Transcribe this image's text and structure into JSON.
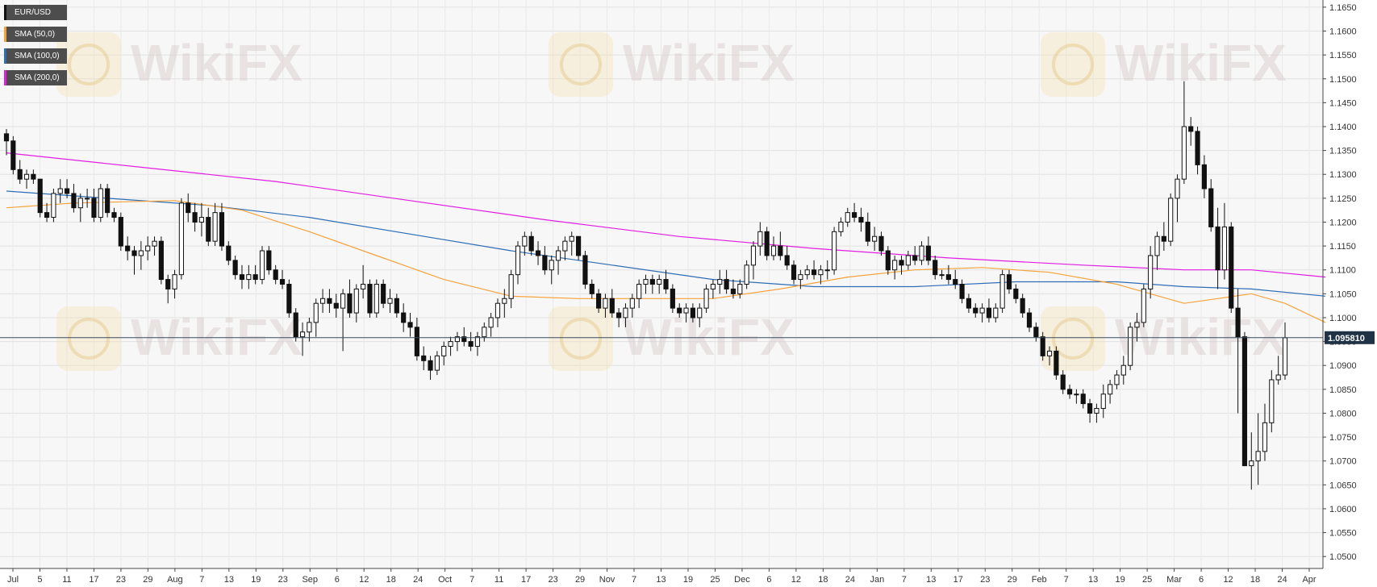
{
  "legend": [
    {
      "label": "EUR/USD",
      "color": "#111111"
    },
    {
      "label": "SMA (50,0)",
      "color": "#f5a23a"
    },
    {
      "label": "SMA (100,0)",
      "color": "#2e6db4"
    },
    {
      "label": "SMA (200,0)",
      "color": "#e11de1"
    }
  ],
  "watermark": "WikiFX",
  "last_price_label": "1.095810",
  "chart_data": {
    "type": "candlestick",
    "instrument": "EUR/USD",
    "timeframe": "daily",
    "ylim": [
      1.0475,
      1.1665
    ],
    "y_ticks": [
      "1.0500",
      "1.0550",
      "1.0600",
      "1.0650",
      "1.0700",
      "1.0750",
      "1.0800",
      "1.0850",
      "1.0900",
      "1.0950",
      "1.1000",
      "1.1050",
      "1.1100",
      "1.1150",
      "1.1200",
      "1.1250",
      "1.1300",
      "1.1350",
      "1.1400",
      "1.1450",
      "1.1500",
      "1.1550",
      "1.1600",
      "1.1650"
    ],
    "x_ticks": [
      "Jul",
      "5",
      "11",
      "17",
      "23",
      "29",
      "Aug",
      "7",
      "13",
      "19",
      "23",
      "Sep",
      "6",
      "12",
      "18",
      "24",
      "Oct",
      "7",
      "11",
      "17",
      "23",
      "29",
      "Nov",
      "7",
      "13",
      "19",
      "25",
      "Dec",
      "6",
      "12",
      "18",
      "24",
      "Jan",
      "7",
      "13",
      "17",
      "23",
      "29",
      "Feb",
      "7",
      "13",
      "19",
      "25",
      "Mar",
      "6",
      "12",
      "18",
      "24",
      "Apr"
    ],
    "grid": true,
    "last_price": 1.09581,
    "candles": [
      [
        1.1385,
        1.1395,
        1.134,
        1.137
      ],
      [
        1.137,
        1.138,
        1.13,
        1.131
      ],
      [
        1.131,
        1.133,
        1.128,
        1.129
      ],
      [
        1.129,
        1.131,
        1.127,
        1.13
      ],
      [
        1.13,
        1.131,
        1.128,
        1.129
      ],
      [
        1.129,
        1.129,
        1.121,
        1.122
      ],
      [
        1.122,
        1.124,
        1.12,
        1.121
      ],
      [
        1.121,
        1.127,
        1.12,
        1.126
      ],
      [
        1.126,
        1.129,
        1.124,
        1.127
      ],
      [
        1.127,
        1.129,
        1.125,
        1.126
      ],
      [
        1.126,
        1.128,
        1.122,
        1.123
      ],
      [
        1.123,
        1.126,
        1.12,
        1.125
      ],
      [
        1.125,
        1.127,
        1.123,
        1.125
      ],
      [
        1.125,
        1.127,
        1.12,
        1.121
      ],
      [
        1.121,
        1.128,
        1.12,
        1.127
      ],
      [
        1.127,
        1.128,
        1.121,
        1.122
      ],
      [
        1.122,
        1.123,
        1.12,
        1.121
      ],
      [
        1.121,
        1.122,
        1.114,
        1.115
      ],
      [
        1.115,
        1.117,
        1.112,
        1.114
      ],
      [
        1.114,
        1.115,
        1.109,
        1.113
      ],
      [
        1.113,
        1.116,
        1.11,
        1.114
      ],
      [
        1.114,
        1.117,
        1.112,
        1.115
      ],
      [
        1.115,
        1.117,
        1.113,
        1.116
      ],
      [
        1.116,
        1.117,
        1.107,
        1.108
      ],
      [
        1.108,
        1.109,
        1.103,
        1.106
      ],
      [
        1.106,
        1.11,
        1.104,
        1.109
      ],
      [
        1.109,
        1.125,
        1.108,
        1.124
      ],
      [
        1.124,
        1.126,
        1.12,
        1.122
      ],
      [
        1.122,
        1.124,
        1.118,
        1.12
      ],
      [
        1.12,
        1.124,
        1.117,
        1.121
      ],
      [
        1.121,
        1.123,
        1.115,
        1.116
      ],
      [
        1.116,
        1.124,
        1.115,
        1.122
      ],
      [
        1.122,
        1.124,
        1.114,
        1.115
      ],
      [
        1.115,
        1.116,
        1.111,
        1.112
      ],
      [
        1.112,
        1.113,
        1.108,
        1.109
      ],
      [
        1.109,
        1.111,
        1.106,
        1.108
      ],
      [
        1.108,
        1.111,
        1.106,
        1.109
      ],
      [
        1.109,
        1.111,
        1.107,
        1.108
      ],
      [
        1.108,
        1.115,
        1.107,
        1.114
      ],
      [
        1.114,
        1.115,
        1.109,
        1.11
      ],
      [
        1.11,
        1.111,
        1.107,
        1.108
      ],
      [
        1.108,
        1.11,
        1.106,
        1.107
      ],
      [
        1.107,
        1.108,
        1.1,
        1.101
      ],
      [
        1.101,
        1.102,
        1.095,
        1.096
      ],
      [
        1.096,
        1.099,
        1.092,
        1.097
      ],
      [
        1.097,
        1.1,
        1.095,
        1.099
      ],
      [
        1.099,
        1.104,
        1.096,
        1.103
      ],
      [
        1.103,
        1.106,
        1.101,
        1.104
      ],
      [
        1.104,
        1.106,
        1.101,
        1.103
      ],
      [
        1.103,
        1.105,
        1.1,
        1.102
      ],
      [
        1.102,
        1.106,
        1.093,
        1.105
      ],
      [
        1.105,
        1.108,
        1.1,
        1.101
      ],
      [
        1.101,
        1.107,
        1.099,
        1.106
      ],
      [
        1.106,
        1.111,
        1.104,
        1.107
      ],
      [
        1.107,
        1.108,
        1.1,
        1.101
      ],
      [
        1.101,
        1.108,
        1.1,
        1.107
      ],
      [
        1.107,
        1.108,
        1.102,
        1.103
      ],
      [
        1.103,
        1.106,
        1.101,
        1.104
      ],
      [
        1.104,
        1.105,
        1.1,
        1.101
      ],
      [
        1.101,
        1.103,
        1.097,
        1.099
      ],
      [
        1.099,
        1.101,
        1.096,
        1.098
      ],
      [
        1.098,
        1.1,
        1.091,
        1.092
      ],
      [
        1.092,
        1.094,
        1.089,
        1.091
      ],
      [
        1.091,
        1.092,
        1.087,
        1.089
      ],
      [
        1.089,
        1.093,
        1.088,
        1.092
      ],
      [
        1.092,
        1.095,
        1.09,
        1.094
      ],
      [
        1.094,
        1.096,
        1.092,
        1.095
      ],
      [
        1.095,
        1.097,
        1.093,
        1.096
      ],
      [
        1.096,
        1.098,
        1.094,
        1.095
      ],
      [
        1.095,
        1.097,
        1.093,
        1.094
      ],
      [
        1.094,
        1.097,
        1.092,
        1.096
      ],
      [
        1.096,
        1.099,
        1.095,
        1.098
      ],
      [
        1.098,
        1.101,
        1.096,
        1.1
      ],
      [
        1.1,
        1.104,
        1.098,
        1.103
      ],
      [
        1.103,
        1.106,
        1.1,
        1.104
      ],
      [
        1.104,
        1.11,
        1.102,
        1.109
      ],
      [
        1.109,
        1.116,
        1.107,
        1.115
      ],
      [
        1.115,
        1.118,
        1.113,
        1.117
      ],
      [
        1.117,
        1.118,
        1.113,
        1.114
      ],
      [
        1.114,
        1.116,
        1.111,
        1.113
      ],
      [
        1.113,
        1.115,
        1.109,
        1.11
      ],
      [
        1.11,
        1.113,
        1.107,
        1.112
      ],
      [
        1.112,
        1.115,
        1.109,
        1.114
      ],
      [
        1.114,
        1.117,
        1.112,
        1.116
      ],
      [
        1.116,
        1.118,
        1.113,
        1.117
      ],
      [
        1.117,
        1.117,
        1.112,
        1.113
      ],
      [
        1.113,
        1.114,
        1.106,
        1.107
      ],
      [
        1.107,
        1.108,
        1.104,
        1.105
      ],
      [
        1.105,
        1.106,
        1.101,
        1.102
      ],
      [
        1.102,
        1.105,
        1.1,
        1.104
      ],
      [
        1.104,
        1.106,
        1.1,
        1.101
      ],
      [
        1.101,
        1.102,
        1.098,
        1.1
      ],
      [
        1.1,
        1.103,
        1.098,
        1.102
      ],
      [
        1.102,
        1.105,
        1.1,
        1.104
      ],
      [
        1.104,
        1.108,
        1.102,
        1.107
      ],
      [
        1.107,
        1.109,
        1.105,
        1.108
      ],
      [
        1.108,
        1.109,
        1.105,
        1.107
      ],
      [
        1.107,
        1.109,
        1.105,
        1.108
      ],
      [
        1.108,
        1.11,
        1.105,
        1.106
      ],
      [
        1.106,
        1.107,
        1.101,
        1.102
      ],
      [
        1.102,
        1.103,
        1.1,
        1.101
      ],
      [
        1.101,
        1.103,
        1.099,
        1.102
      ],
      [
        1.102,
        1.103,
        1.099,
        1.1
      ],
      [
        1.1,
        1.103,
        1.098,
        1.102
      ],
      [
        1.102,
        1.107,
        1.101,
        1.106
      ],
      [
        1.106,
        1.108,
        1.104,
        1.107
      ],
      [
        1.107,
        1.11,
        1.105,
        1.108
      ],
      [
        1.108,
        1.11,
        1.105,
        1.106
      ],
      [
        1.106,
        1.108,
        1.104,
        1.105
      ],
      [
        1.105,
        1.108,
        1.104,
        1.107
      ],
      [
        1.107,
        1.112,
        1.106,
        1.111
      ],
      [
        1.111,
        1.116,
        1.108,
        1.115
      ],
      [
        1.115,
        1.12,
        1.113,
        1.118
      ],
      [
        1.118,
        1.119,
        1.112,
        1.113
      ],
      [
        1.113,
        1.117,
        1.112,
        1.115
      ],
      [
        1.115,
        1.118,
        1.112,
        1.113
      ],
      [
        1.113,
        1.115,
        1.11,
        1.111
      ],
      [
        1.111,
        1.112,
        1.107,
        1.108
      ],
      [
        1.108,
        1.11,
        1.106,
        1.109
      ],
      [
        1.109,
        1.111,
        1.108,
        1.11
      ],
      [
        1.11,
        1.112,
        1.108,
        1.109
      ],
      [
        1.109,
        1.111,
        1.107,
        1.11
      ],
      [
        1.11,
        1.112,
        1.108,
        1.11
      ],
      [
        1.11,
        1.119,
        1.109,
        1.118
      ],
      [
        1.118,
        1.121,
        1.117,
        1.12
      ],
      [
        1.12,
        1.123,
        1.119,
        1.122
      ],
      [
        1.122,
        1.124,
        1.12,
        1.121
      ],
      [
        1.121,
        1.123,
        1.118,
        1.12
      ],
      [
        1.12,
        1.122,
        1.115,
        1.116
      ],
      [
        1.116,
        1.119,
        1.114,
        1.117
      ],
      [
        1.117,
        1.118,
        1.113,
        1.114
      ],
      [
        1.114,
        1.115,
        1.109,
        1.11
      ],
      [
        1.11,
        1.113,
        1.108,
        1.112
      ],
      [
        1.112,
        1.113,
        1.109,
        1.111
      ],
      [
        1.111,
        1.114,
        1.11,
        1.113
      ],
      [
        1.113,
        1.115,
        1.111,
        1.112
      ],
      [
        1.112,
        1.116,
        1.111,
        1.115
      ],
      [
        1.115,
        1.117,
        1.111,
        1.112
      ],
      [
        1.112,
        1.113,
        1.108,
        1.109
      ],
      [
        1.109,
        1.11,
        1.108,
        1.109
      ],
      [
        1.109,
        1.111,
        1.107,
        1.108
      ],
      [
        1.108,
        1.11,
        1.106,
        1.107
      ],
      [
        1.107,
        1.108,
        1.103,
        1.104
      ],
      [
        1.104,
        1.105,
        1.101,
        1.102
      ],
      [
        1.102,
        1.103,
        1.1,
        1.101
      ],
      [
        1.101,
        1.103,
        1.099,
        1.102
      ],
      [
        1.102,
        1.104,
        1.099,
        1.1
      ],
      [
        1.1,
        1.103,
        1.099,
        1.102
      ],
      [
        1.102,
        1.11,
        1.101,
        1.109
      ],
      [
        1.109,
        1.11,
        1.105,
        1.106
      ],
      [
        1.106,
        1.107,
        1.103,
        1.104
      ],
      [
        1.104,
        1.105,
        1.1,
        1.101
      ],
      [
        1.101,
        1.102,
        1.097,
        1.098
      ],
      [
        1.098,
        1.099,
        1.095,
        1.096
      ],
      [
        1.096,
        1.097,
        1.091,
        1.092
      ],
      [
        1.092,
        1.094,
        1.09,
        1.093
      ],
      [
        1.093,
        1.094,
        1.087,
        1.088
      ],
      [
        1.088,
        1.089,
        1.084,
        1.085
      ],
      [
        1.085,
        1.086,
        1.083,
        1.084
      ],
      [
        1.084,
        1.085,
        1.082,
        1.084
      ],
      [
        1.084,
        1.085,
        1.081,
        1.082
      ],
      [
        1.082,
        1.083,
        1.078,
        1.08
      ],
      [
        1.08,
        1.082,
        1.078,
        1.081
      ],
      [
        1.081,
        1.086,
        1.079,
        1.084
      ],
      [
        1.084,
        1.087,
        1.082,
        1.086
      ],
      [
        1.086,
        1.089,
        1.085,
        1.088
      ],
      [
        1.088,
        1.092,
        1.086,
        1.09
      ],
      [
        1.09,
        1.099,
        1.089,
        1.098
      ],
      [
        1.098,
        1.101,
        1.095,
        1.099
      ],
      [
        1.099,
        1.107,
        1.098,
        1.106
      ],
      [
        1.106,
        1.115,
        1.104,
        1.113
      ],
      [
        1.113,
        1.118,
        1.11,
        1.117
      ],
      [
        1.117,
        1.12,
        1.114,
        1.116
      ],
      [
        1.116,
        1.126,
        1.115,
        1.125
      ],
      [
        1.125,
        1.13,
        1.12,
        1.129
      ],
      [
        1.129,
        1.1495,
        1.128,
        1.14
      ],
      [
        1.14,
        1.142,
        1.136,
        1.139
      ],
      [
        1.139,
        1.14,
        1.13,
        1.132
      ],
      [
        1.132,
        1.134,
        1.125,
        1.127
      ],
      [
        1.127,
        1.129,
        1.118,
        1.119
      ],
      [
        1.119,
        1.123,
        1.106,
        1.11
      ],
      [
        1.11,
        1.124,
        1.108,
        1.119
      ],
      [
        1.119,
        1.12,
        1.101,
        1.102
      ],
      [
        1.102,
        1.106,
        1.08,
        1.096
      ],
      [
        1.096,
        1.097,
        1.07,
        1.069
      ],
      [
        1.069,
        1.076,
        1.064,
        1.07
      ],
      [
        1.07,
        1.08,
        1.065,
        1.072
      ],
      [
        1.072,
        1.082,
        1.07,
        1.078
      ],
      [
        1.078,
        1.089,
        1.076,
        1.087
      ],
      [
        1.087,
        1.092,
        1.086,
        1.088
      ],
      [
        1.088,
        1.099,
        1.087,
        1.0958
      ]
    ],
    "sma_50": [
      [
        0,
        1.123
      ],
      [
        10,
        1.124
      ],
      [
        25,
        1.1245
      ],
      [
        35,
        1.1225
      ],
      [
        45,
        1.118
      ],
      [
        55,
        1.113
      ],
      [
        65,
        1.108
      ],
      [
        75,
        1.1045
      ],
      [
        85,
        1.104
      ],
      [
        95,
        1.104
      ],
      [
        105,
        1.104
      ],
      [
        115,
        1.106
      ],
      [
        125,
        1.1085
      ],
      [
        135,
        1.11
      ],
      [
        145,
        1.1105
      ],
      [
        155,
        1.1095
      ],
      [
        165,
        1.107
      ],
      [
        175,
        1.103
      ],
      [
        180,
        1.104
      ],
      [
        185,
        1.105
      ],
      [
        190,
        1.103
      ],
      [
        196,
        1.099
      ]
    ],
    "sma_100": [
      [
        0,
        1.1265
      ],
      [
        15,
        1.125
      ],
      [
        30,
        1.1235
      ],
      [
        45,
        1.121
      ],
      [
        60,
        1.1175
      ],
      [
        75,
        1.114
      ],
      [
        90,
        1.111
      ],
      [
        105,
        1.108
      ],
      [
        120,
        1.1065
      ],
      [
        135,
        1.1065
      ],
      [
        150,
        1.1075
      ],
      [
        165,
        1.1075
      ],
      [
        175,
        1.1065
      ],
      [
        185,
        1.106
      ],
      [
        196,
        1.1045
      ]
    ],
    "sma_200": [
      [
        0,
        1.1345
      ],
      [
        20,
        1.1315
      ],
      [
        40,
        1.1285
      ],
      [
        60,
        1.1245
      ],
      [
        80,
        1.1205
      ],
      [
        100,
        1.117
      ],
      [
        120,
        1.1145
      ],
      [
        140,
        1.1125
      ],
      [
        160,
        1.111
      ],
      [
        175,
        1.11
      ],
      [
        185,
        1.11
      ],
      [
        196,
        1.1085
      ]
    ]
  }
}
